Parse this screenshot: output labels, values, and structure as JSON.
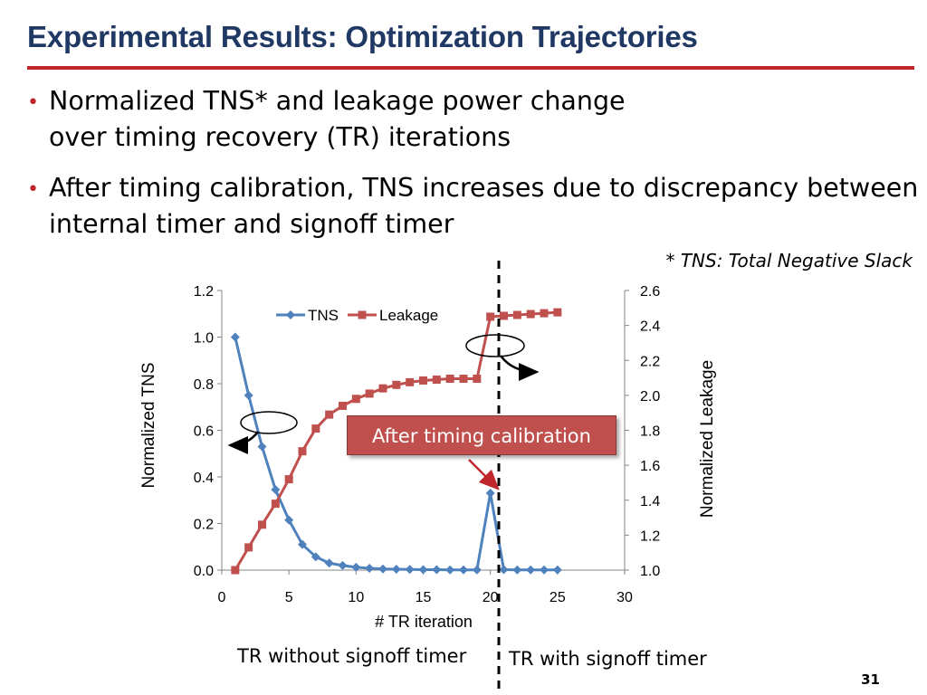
{
  "slide": {
    "title": "Experimental Results: Optimization Trajectories",
    "bullets": [
      "Normalized TNS* and leakage power change\nover timing recovery (TR) iterations",
      "After timing calibration, TNS increases due to discrepancy between internal timer and signoff timer"
    ],
    "bullet_marker": "•",
    "footnote": "* TNS: Total Negative Slack",
    "caption_left": "TR without signoff timer",
    "caption_right": "TR with signoff timer",
    "page_number": "31",
    "annotation": "After timing calibration"
  },
  "colors": {
    "title": "#1f3864",
    "accent_red": "#c0272d",
    "tns": "#4f81bd",
    "leakage": "#c0504d",
    "annotation_box": "#c0504d"
  },
  "chart_data": {
    "type": "line",
    "xlabel": "# TR iteration",
    "ylabel": "Normalized TNS",
    "y2label": "Normalized  Leakage",
    "xlim": [
      0,
      30
    ],
    "ylim": [
      0,
      1.2
    ],
    "y2lim": [
      1.0,
      2.6
    ],
    "x_ticks": [
      0,
      5,
      10,
      15,
      20,
      25,
      30
    ],
    "y_ticks": [
      "0.0",
      "0.2",
      "0.4",
      "0.6",
      "0.8",
      "1.0",
      "1.2"
    ],
    "y2_ticks": [
      "1.0",
      "1.2",
      "1.4",
      "1.6",
      "1.8",
      "2.0",
      "2.2",
      "2.4",
      "2.6"
    ],
    "legend_position": "top-left",
    "x": [
      1,
      2,
      3,
      4,
      5,
      6,
      7,
      8,
      9,
      10,
      11,
      12,
      13,
      14,
      15,
      16,
      17,
      18,
      19,
      20,
      21,
      22,
      23,
      24,
      25
    ],
    "series": [
      {
        "name": "TNS",
        "axis": "left",
        "marker": "diamond",
        "values": [
          1.0,
          0.75,
          0.53,
          0.345,
          0.215,
          0.11,
          0.057,
          0.03,
          0.02,
          0.012,
          0.008,
          0.005,
          0.004,
          0.003,
          0.002,
          0.002,
          0.001,
          0.001,
          0.001,
          0.33,
          0.002,
          0.001,
          0.001,
          0.001,
          0.001
        ]
      },
      {
        "name": "Leakage",
        "axis": "right",
        "marker": "square",
        "values": [
          1.0,
          1.13,
          1.26,
          1.38,
          1.52,
          1.68,
          1.81,
          1.89,
          1.94,
          1.98,
          2.01,
          2.04,
          2.06,
          2.075,
          2.085,
          2.09,
          2.095,
          2.095,
          2.095,
          2.45,
          2.455,
          2.46,
          2.465,
          2.47,
          2.475
        ]
      }
    ]
  }
}
